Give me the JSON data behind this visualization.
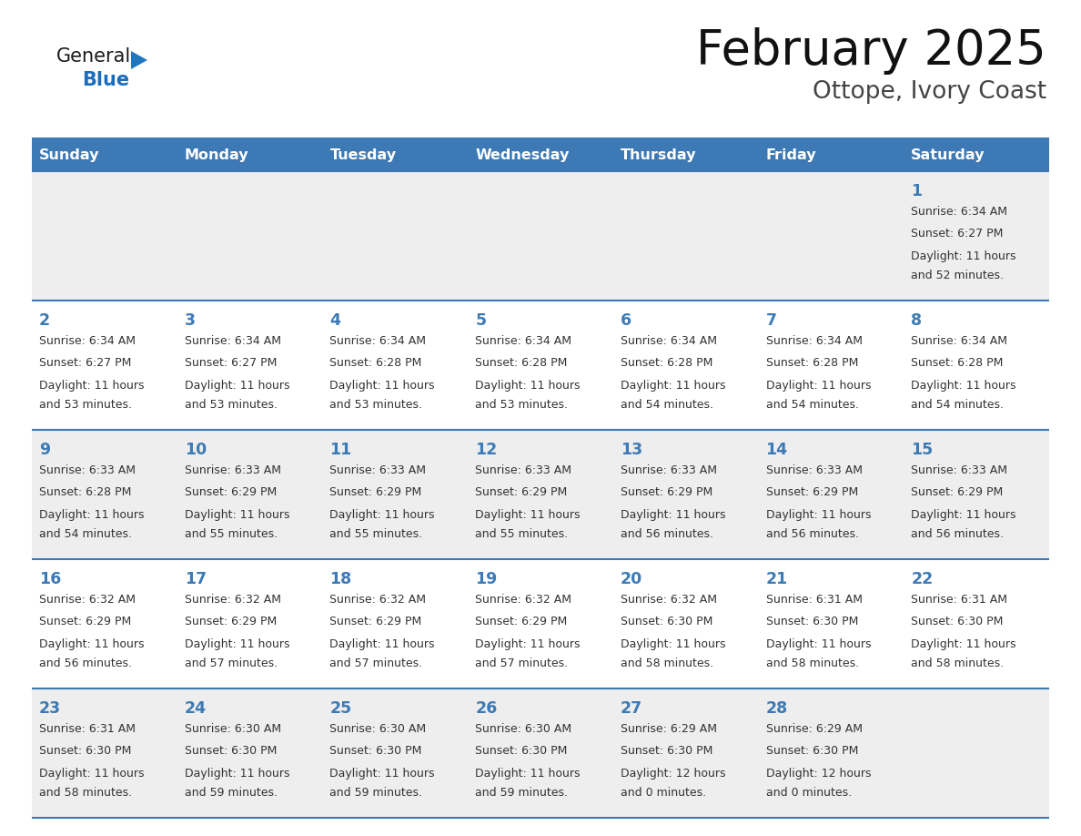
{
  "title": "February 2025",
  "subtitle": "Ottope, Ivory Coast",
  "header_bg": "#3d7ab5",
  "header_text": "#FFFFFF",
  "header_days": [
    "Sunday",
    "Monday",
    "Tuesday",
    "Wednesday",
    "Thursday",
    "Friday",
    "Saturday"
  ],
  "row_bg_odd": "#eeeeee",
  "row_bg_even": "#FFFFFF",
  "border_color": "#3d7ab5",
  "day_number_color": "#3d7ab5",
  "cell_text_color": "#333333",
  "calendar": [
    [
      null,
      null,
      null,
      null,
      null,
      null,
      {
        "day": 1,
        "sunrise": "6:34 AM",
        "sunset": "6:27 PM",
        "daylight": "11 hours",
        "daylight2": "and 52 minutes."
      }
    ],
    [
      {
        "day": 2,
        "sunrise": "6:34 AM",
        "sunset": "6:27 PM",
        "daylight": "11 hours",
        "daylight2": "and 53 minutes."
      },
      {
        "day": 3,
        "sunrise": "6:34 AM",
        "sunset": "6:27 PM",
        "daylight": "11 hours",
        "daylight2": "and 53 minutes."
      },
      {
        "day": 4,
        "sunrise": "6:34 AM",
        "sunset": "6:28 PM",
        "daylight": "11 hours",
        "daylight2": "and 53 minutes."
      },
      {
        "day": 5,
        "sunrise": "6:34 AM",
        "sunset": "6:28 PM",
        "daylight": "11 hours",
        "daylight2": "and 53 minutes."
      },
      {
        "day": 6,
        "sunrise": "6:34 AM",
        "sunset": "6:28 PM",
        "daylight": "11 hours",
        "daylight2": "and 54 minutes."
      },
      {
        "day": 7,
        "sunrise": "6:34 AM",
        "sunset": "6:28 PM",
        "daylight": "11 hours",
        "daylight2": "and 54 minutes."
      },
      {
        "day": 8,
        "sunrise": "6:34 AM",
        "sunset": "6:28 PM",
        "daylight": "11 hours",
        "daylight2": "and 54 minutes."
      }
    ],
    [
      {
        "day": 9,
        "sunrise": "6:33 AM",
        "sunset": "6:28 PM",
        "daylight": "11 hours",
        "daylight2": "and 54 minutes."
      },
      {
        "day": 10,
        "sunrise": "6:33 AM",
        "sunset": "6:29 PM",
        "daylight": "11 hours",
        "daylight2": "and 55 minutes."
      },
      {
        "day": 11,
        "sunrise": "6:33 AM",
        "sunset": "6:29 PM",
        "daylight": "11 hours",
        "daylight2": "and 55 minutes."
      },
      {
        "day": 12,
        "sunrise": "6:33 AM",
        "sunset": "6:29 PM",
        "daylight": "11 hours",
        "daylight2": "and 55 minutes."
      },
      {
        "day": 13,
        "sunrise": "6:33 AM",
        "sunset": "6:29 PM",
        "daylight": "11 hours",
        "daylight2": "and 56 minutes."
      },
      {
        "day": 14,
        "sunrise": "6:33 AM",
        "sunset": "6:29 PM",
        "daylight": "11 hours",
        "daylight2": "and 56 minutes."
      },
      {
        "day": 15,
        "sunrise": "6:33 AM",
        "sunset": "6:29 PM",
        "daylight": "11 hours",
        "daylight2": "and 56 minutes."
      }
    ],
    [
      {
        "day": 16,
        "sunrise": "6:32 AM",
        "sunset": "6:29 PM",
        "daylight": "11 hours",
        "daylight2": "and 56 minutes."
      },
      {
        "day": 17,
        "sunrise": "6:32 AM",
        "sunset": "6:29 PM",
        "daylight": "11 hours",
        "daylight2": "and 57 minutes."
      },
      {
        "day": 18,
        "sunrise": "6:32 AM",
        "sunset": "6:29 PM",
        "daylight": "11 hours",
        "daylight2": "and 57 minutes."
      },
      {
        "day": 19,
        "sunrise": "6:32 AM",
        "sunset": "6:29 PM",
        "daylight": "11 hours",
        "daylight2": "and 57 minutes."
      },
      {
        "day": 20,
        "sunrise": "6:32 AM",
        "sunset": "6:30 PM",
        "daylight": "11 hours",
        "daylight2": "and 58 minutes."
      },
      {
        "day": 21,
        "sunrise": "6:31 AM",
        "sunset": "6:30 PM",
        "daylight": "11 hours",
        "daylight2": "and 58 minutes."
      },
      {
        "day": 22,
        "sunrise": "6:31 AM",
        "sunset": "6:30 PM",
        "daylight": "11 hours",
        "daylight2": "and 58 minutes."
      }
    ],
    [
      {
        "day": 23,
        "sunrise": "6:31 AM",
        "sunset": "6:30 PM",
        "daylight": "11 hours",
        "daylight2": "and 58 minutes."
      },
      {
        "day": 24,
        "sunrise": "6:30 AM",
        "sunset": "6:30 PM",
        "daylight": "11 hours",
        "daylight2": "and 59 minutes."
      },
      {
        "day": 25,
        "sunrise": "6:30 AM",
        "sunset": "6:30 PM",
        "daylight": "11 hours",
        "daylight2": "and 59 minutes."
      },
      {
        "day": 26,
        "sunrise": "6:30 AM",
        "sunset": "6:30 PM",
        "daylight": "11 hours",
        "daylight2": "and 59 minutes."
      },
      {
        "day": 27,
        "sunrise": "6:29 AM",
        "sunset": "6:30 PM",
        "daylight": "12 hours",
        "daylight2": "and 0 minutes."
      },
      {
        "day": 28,
        "sunrise": "6:29 AM",
        "sunset": "6:30 PM",
        "daylight": "12 hours",
        "daylight2": "and 0 minutes."
      },
      null
    ]
  ],
  "logo_general_color": "#1a1a1a",
  "logo_blue_color": "#1a6ebd",
  "logo_triangle_color": "#2176C0"
}
